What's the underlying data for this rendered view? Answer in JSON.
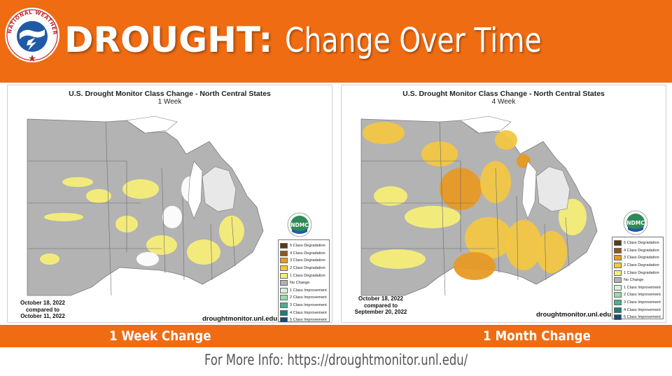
{
  "header": {
    "logo_text": "NATIONAL WEATHER SERVICE",
    "title_bold": "DROUGHT:",
    "title_rest": "Change Over Time"
  },
  "colors": {
    "brand_orange": "#ef6c12",
    "no_change": "#b3b3b3",
    "deg1": "#f5ee79",
    "deg2": "#f2c744",
    "deg3": "#e79a25"
  },
  "panels": [
    {
      "title": "U.S. Drought Monitor Class Change - North Central States",
      "subtitle": "1 Week",
      "date_lines": [
        "October 18, 2022",
        "compared to",
        "October 11, 2022"
      ],
      "credit": "droughtmonitor.unl.edu",
      "logo": "NDMC"
    },
    {
      "title": "U.S. Drought Monitor Class Change - North Central States",
      "subtitle": "4 Week",
      "date_lines": [
        "October 18, 2022",
        "compared to",
        "September 20, 2022"
      ],
      "credit": "droughtmonitor.unl.edu",
      "logo": "NDMC"
    }
  ],
  "legend": [
    {
      "label": "5 Class Degradation",
      "color": "#5a3a12"
    },
    {
      "label": "4 Class Degradation",
      "color": "#8e5a1c"
    },
    {
      "label": "3 Class Degradation",
      "color": "#e79a25"
    },
    {
      "label": "2 Class Degradation",
      "color": "#f2c744"
    },
    {
      "label": "1 Class Degradation",
      "color": "#f5ee79"
    },
    {
      "label": "No Change",
      "color": "#b3b3b3"
    },
    {
      "label": "1 Class Improvement",
      "color": "#d6f2dc"
    },
    {
      "label": "2 Class Improvement",
      "color": "#9ed8a8"
    },
    {
      "label": "3 Class Improvement",
      "color": "#4fae8c"
    },
    {
      "label": "4 Class Improvement",
      "color": "#1f7d78"
    },
    {
      "label": "5 Class Improvement",
      "color": "#1a4a7a"
    }
  ],
  "bands": {
    "left": "1 Week Change",
    "right": "1 Month Change"
  },
  "footer": "For More Info: https://droughtmonitor.unl.edu/"
}
